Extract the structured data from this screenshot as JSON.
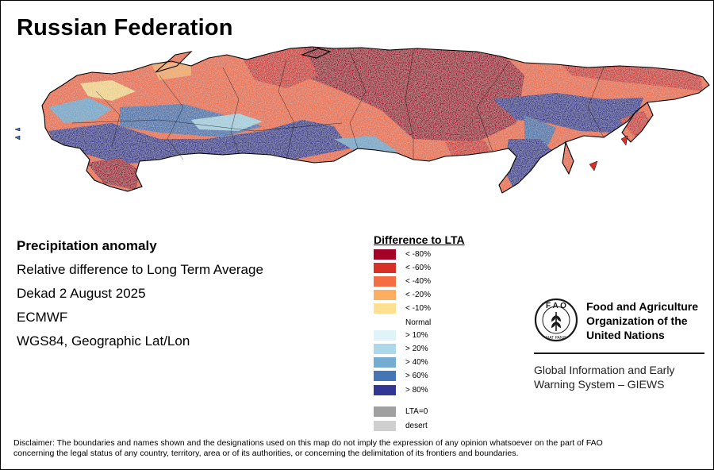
{
  "title": "Russian Federation",
  "map": {
    "region": "Russian Federation",
    "layer": "precipitation-anomaly-raster"
  },
  "metadata": {
    "heading": "Precipitation anomaly",
    "line1": "Relative difference to Long Term Average",
    "line2": "Dekad 2 August 2025",
    "line3": "ECMWF",
    "line4": "WGS84, Geographic Lat/Lon"
  },
  "legend": {
    "title": "Difference to LTA",
    "items": [
      {
        "label": "< -80%",
        "color": "#a50026"
      },
      {
        "label": "< -60%",
        "color": "#d73027"
      },
      {
        "label": "< -40%",
        "color": "#f46d43"
      },
      {
        "label": "< -20%",
        "color": "#fdae61"
      },
      {
        "label": "< -10%",
        "color": "#fee090"
      },
      {
        "label": "> 10%",
        "color": "#e0f3f8"
      },
      {
        "label": "> 20%",
        "color": "#abd9e9"
      },
      {
        "label": "> 40%",
        "color": "#74add1"
      },
      {
        "label": "> 60%",
        "color": "#4575b4"
      },
      {
        "label": "> 80%",
        "color": "#313695"
      },
      {
        "label": "LTA=0",
        "color": "#a0a0a0"
      },
      {
        "label": "desert",
        "color": "#cfcfcf"
      }
    ],
    "normal_label": "Normal"
  },
  "org": {
    "name_line1": "Food and Agriculture",
    "name_line2": "Organization of the",
    "name_line3": "United Nations",
    "emblem_letters": "F A O",
    "emblem_motto": "FIAT PANIS",
    "system_line1": "Global Information and Early",
    "system_line2": "Warning System – GIEWS"
  },
  "disclaimer": {
    "line1": "Disclaimer: The boundaries and names shown and the designations used on this map do not imply the expression of any opinion whatsoever on the part of FAO",
    "line2": "concerning the legal status of any country, territory, area or of its authorities, or concerning the delimitation of its frontiers and boundaries."
  }
}
